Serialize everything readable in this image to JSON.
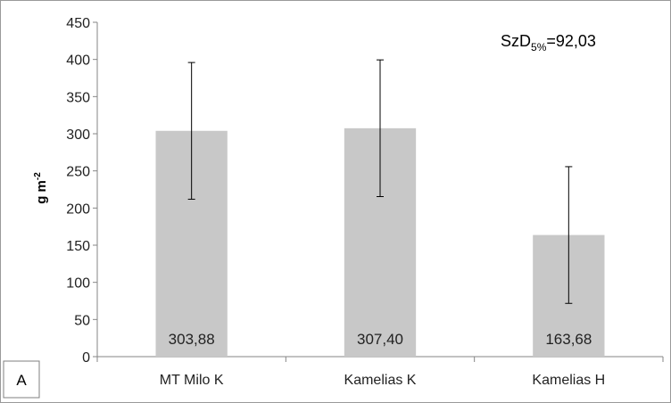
{
  "chart_data": {
    "type": "bar",
    "categories": [
      "MT Milo K",
      "Kamelias K",
      "Kamelias H"
    ],
    "values": [
      303.88,
      307.4,
      163.68
    ],
    "data_labels": [
      "303,88",
      "307,40",
      "163,68"
    ],
    "error": [
      92,
      92,
      92
    ],
    "ylabel": {
      "base": "g m",
      "sup": "-2"
    },
    "ylim": [
      0,
      450
    ],
    "yticks": [
      0,
      50,
      100,
      150,
      200,
      250,
      300,
      350,
      400,
      450
    ],
    "grid": false,
    "bar_color": "#c8c8c8",
    "annotation": {
      "base": "SzD",
      "sub": "5%",
      "rest": "=92,03"
    },
    "panel_label": "A"
  }
}
